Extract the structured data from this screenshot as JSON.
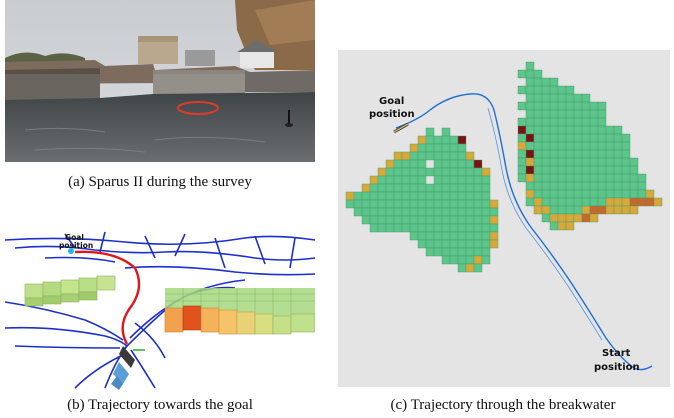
{
  "figure": {
    "panel_a": {
      "caption": "(a) Sparus II during the survey"
    },
    "panel_b": {
      "caption": "(b) Trajectory towards the goal",
      "goal_label_line1": "Goal",
      "goal_label_line2": "position"
    },
    "panel_c": {
      "caption": "(c) Trajectory through the breakwater",
      "goal_label_line1": "Goal",
      "goal_label_line2": "position",
      "start_label_line1": "Start",
      "start_label_line2": "position"
    },
    "colors": {
      "free_cell": "#5dc48a",
      "cell_border": "#3f9a68",
      "warm_cell": "#d7a93a",
      "hot_cell": "#c8672b",
      "dark_cell": "#7a1414",
      "trajectory": "#1f6fd6",
      "planned_path": "#e0161a",
      "map_background": "#e4e4e4"
    }
  }
}
